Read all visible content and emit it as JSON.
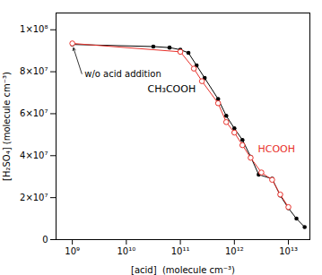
{
  "chart_data": {
    "type": "line",
    "xlabel": "[acid]  (molecule cm⁻³)",
    "ylabel": "[H₂SO₄] (molecule cm⁻³)",
    "log": "x",
    "grid": false,
    "xlim": [
      500000000.0,
      25000000000000.0
    ],
    "ylim": [
      0,
      108000000.0
    ],
    "xticks": [
      {
        "value": 1000000000.0,
        "label": "10⁹"
      },
      {
        "value": 10000000000.0,
        "label": "10¹⁰"
      },
      {
        "value": 100000000000.0,
        "label": "10¹¹"
      },
      {
        "value": 1000000000000.0,
        "label": "10¹²"
      },
      {
        "value": 10000000000000.0,
        "label": "10¹³"
      }
    ],
    "yticks": [
      0,
      {
        "value": 20000000.0,
        "label": "2×10⁷"
      },
      {
        "value": 40000000.0,
        "label": "4×10⁷"
      },
      {
        "value": 60000000.0,
        "label": "6×10⁷"
      },
      {
        "value": 80000000.0,
        "label": "8×10⁷"
      },
      {
        "value": 100000000.0,
        "label": "1×10⁸"
      }
    ],
    "annotations": [
      "w/o acid addition"
    ],
    "series": [
      {
        "name": "CH₃COOH",
        "color": "#000000",
        "marker": "circle",
        "x": [
          1000000000.0,
          31600000000.0,
          63100000000.0,
          100000000000.0,
          141000000000.0,
          200000000000.0,
          282000000000.0,
          500000000000.0,
          707000000000.0,
          1000000000000.0,
          1410000000000.0,
          2000000000000.0,
          2820000000000.0,
          5000000000000.0,
          7070000000000.0,
          10000000000000.0,
          14100000000000.0,
          20000000000000.0
        ],
        "values": [
          93000000.0,
          92000000.0,
          91500000.0,
          90500000.0,
          89000000.0,
          83000000.0,
          77000000.0,
          67000000.0,
          59000000.0,
          53000000.0,
          47500000.0,
          39500000.0,
          31000000.0,
          29000000.0,
          21000000.0,
          15000000.0,
          10000000.0,
          6000000.0
        ]
      },
      {
        "name": "HCOOH",
        "color": "#e8302a",
        "marker": "open_circle",
        "x": [
          1000000000.0,
          100000000000.0,
          178000000000.0,
          251000000000.0,
          500000000000.0,
          707000000000.0,
          1000000000000.0,
          1410000000000.0,
          2000000000000.0,
          3160000000000.0,
          5000000000000.0,
          7070000000000.0,
          10000000000000.0
        ],
        "values": [
          93500000.0,
          89500000.0,
          81500000.0,
          75500000.0,
          65000000.0,
          56000000.0,
          51000000.0,
          45000000.0,
          39000000.0,
          32000000.0,
          28500000.0,
          21500000.0,
          15500000.0
        ]
      }
    ]
  }
}
